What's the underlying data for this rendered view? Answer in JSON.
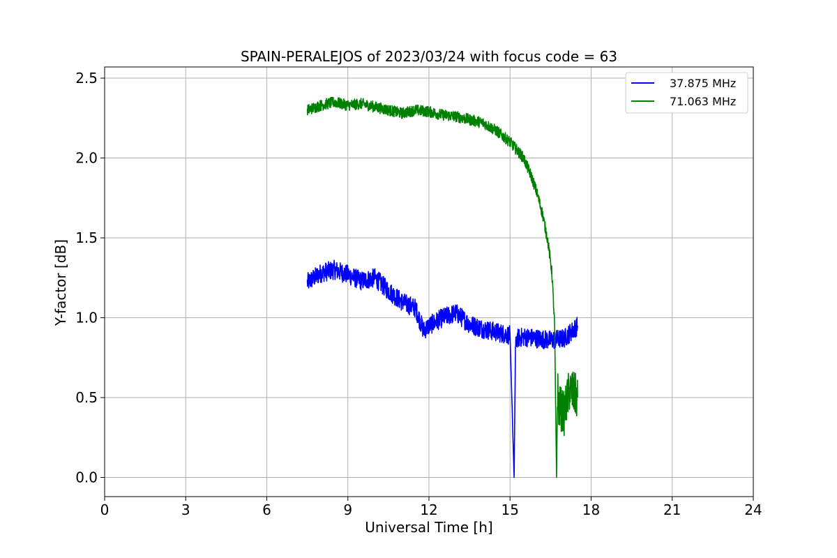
{
  "chart_data": {
    "type": "line",
    "title": "SPAIN-PERALEJOS of 2023/03/24 with focus code = 63",
    "xlabel": "Universal Time [h]",
    "ylabel": "Y-factor [dB]",
    "xlim": [
      0,
      24
    ],
    "ylim": [
      -0.12,
      2.57
    ],
    "xticks": [
      0,
      3,
      6,
      9,
      12,
      15,
      18,
      21,
      24
    ],
    "yticks": [
      0.0,
      0.5,
      1.0,
      1.5,
      2.0,
      2.5
    ],
    "xtick_labels": [
      "0",
      "3",
      "6",
      "9",
      "12",
      "15",
      "18",
      "21",
      "24"
    ],
    "ytick_labels": [
      "0.0",
      "0.5",
      "1.0",
      "1.5",
      "2.0",
      "2.5"
    ],
    "grid": true,
    "legend_position": "top-right",
    "series": [
      {
        "name": "37.875 MHz",
        "color": "#0000ff",
        "x": [
          7.5,
          8.0,
          8.5,
          9.0,
          9.5,
          10.0,
          10.5,
          11.0,
          11.5,
          11.8,
          12.0,
          12.5,
          13.0,
          13.5,
          14.0,
          14.5,
          15.0,
          15.15,
          15.2,
          15.25,
          15.5,
          16.0,
          16.5,
          17.0,
          17.5
        ],
        "y": [
          1.22,
          1.28,
          1.3,
          1.27,
          1.23,
          1.25,
          1.17,
          1.1,
          1.06,
          0.92,
          0.95,
          1.0,
          1.03,
          0.96,
          0.93,
          0.91,
          0.89,
          0.0,
          0.8,
          0.87,
          0.88,
          0.87,
          0.86,
          0.87,
          0.95
        ]
      },
      {
        "name": "71.063 MHz",
        "color": "#008000",
        "x": [
          7.5,
          8.0,
          8.5,
          9.0,
          9.5,
          10.0,
          10.5,
          11.0,
          11.5,
          12.0,
          12.5,
          13.0,
          13.5,
          14.0,
          14.5,
          15.0,
          15.5,
          15.8,
          16.0,
          16.2,
          16.4,
          16.55,
          16.65,
          16.72,
          16.76,
          16.8,
          17.0,
          17.2,
          17.5
        ],
        "y": [
          2.3,
          2.33,
          2.35,
          2.33,
          2.34,
          2.32,
          2.3,
          2.28,
          2.3,
          2.29,
          2.27,
          2.26,
          2.24,
          2.22,
          2.17,
          2.1,
          2.0,
          1.88,
          1.78,
          1.65,
          1.48,
          1.28,
          0.95,
          0.0,
          0.55,
          0.45,
          0.4,
          0.55,
          0.5
        ]
      }
    ]
  }
}
